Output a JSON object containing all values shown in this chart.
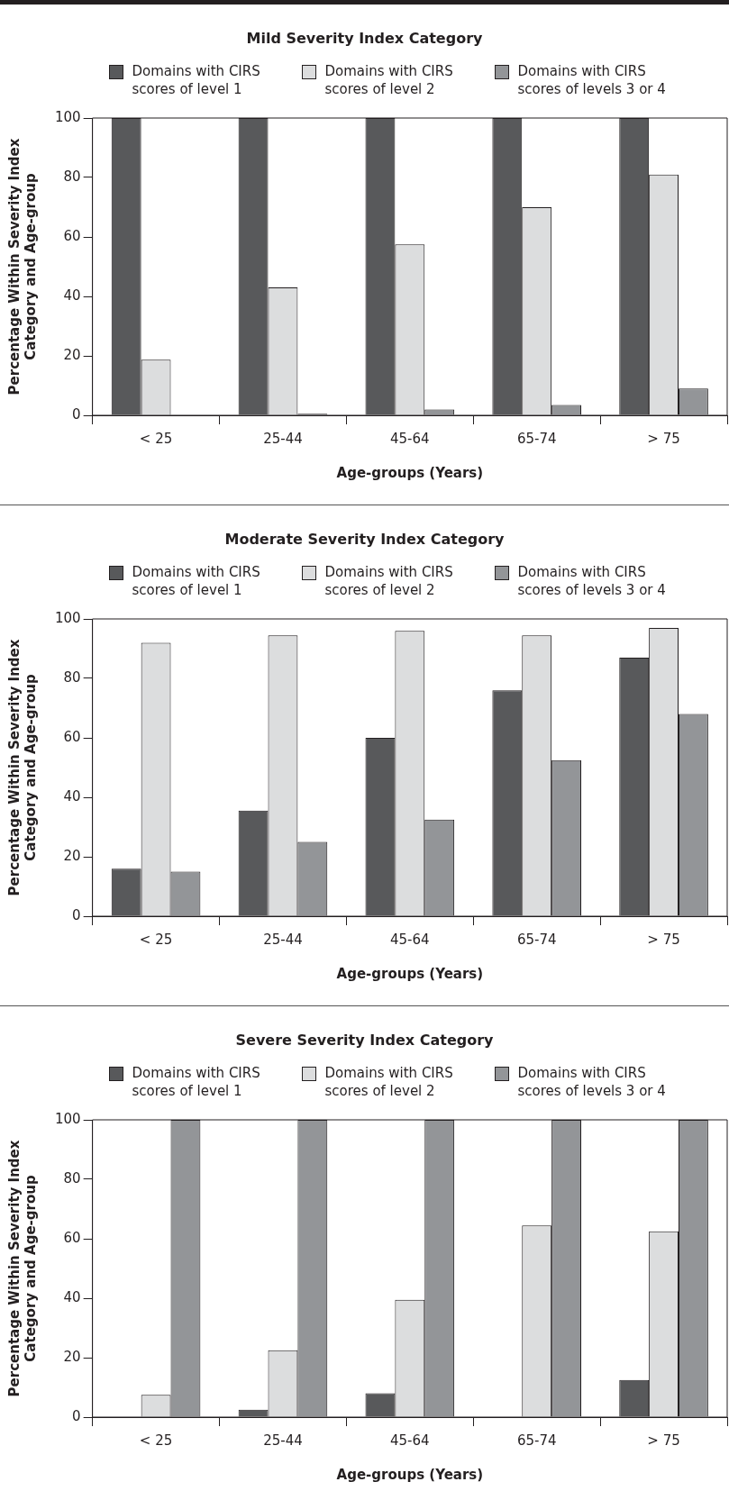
{
  "chart_data": [
    {
      "type": "bar",
      "title": "Mild Severity Index Category",
      "xlabel": "Age-groups (Years)",
      "ylabel": "Percentage Within Severity Index Category and Age-group",
      "categories": [
        "< 25",
        "25-44",
        "45-64",
        "65-74",
        "> 75"
      ],
      "ylim": [
        0,
        100
      ],
      "yticks": [
        0,
        20,
        40,
        60,
        80,
        100
      ],
      "legend": "top",
      "series": [
        {
          "name": "Domains with CIRS scores of level 1",
          "color": "#58595b",
          "values": [
            100,
            100,
            100,
            100,
            100
          ]
        },
        {
          "name": "Domains with CIRS scores of level 2",
          "color": "#dcddde",
          "values": [
            18.7,
            43,
            57.5,
            70,
            81
          ]
        },
        {
          "name": "Domains with CIRS scores of levels 3 or 4",
          "color": "#939598",
          "values": [
            0,
            0.5,
            2,
            3.5,
            9
          ]
        }
      ]
    },
    {
      "type": "bar",
      "title": "Moderate Severity Index Category",
      "xlabel": "Age-groups (Years)",
      "ylabel": "Percentage Within Severity Index Category and Age-group",
      "categories": [
        "< 25",
        "25-44",
        "45-64",
        "65-74",
        "> 75"
      ],
      "ylim": [
        0,
        100
      ],
      "yticks": [
        0,
        20,
        40,
        60,
        80,
        100
      ],
      "legend": "top",
      "series": [
        {
          "name": "Domains with CIRS scores of level 1",
          "color": "#58595b",
          "values": [
            16,
            35.5,
            60,
            76,
            87
          ]
        },
        {
          "name": "Domains with CIRS scores of level 2",
          "color": "#dcddde",
          "values": [
            92,
            94.5,
            96,
            94.5,
            97
          ]
        },
        {
          "name": "Domains with CIRS scores of levels 3 or 4",
          "color": "#939598",
          "values": [
            15,
            25,
            32.5,
            52.5,
            68
          ]
        }
      ]
    },
    {
      "type": "bar",
      "title": "Severe Severity Index Category",
      "xlabel": "Age-groups (Years)",
      "ylabel": "Percentage Within Severity Index Category and Age-group",
      "categories": [
        "< 25",
        "25-44",
        "45-64",
        "65-74",
        "> 75"
      ],
      "ylim": [
        0,
        100
      ],
      "yticks": [
        0,
        20,
        40,
        60,
        80,
        100
      ],
      "legend": "top",
      "series": [
        {
          "name": "Domains with CIRS scores of level 1",
          "color": "#58595b",
          "values": [
            0,
            2.5,
            8,
            0,
            12.5
          ]
        },
        {
          "name": "Domains with CIRS scores of level 2",
          "color": "#dcddde",
          "values": [
            7.5,
            22.5,
            39.5,
            64.5,
            62.5
          ]
        },
        {
          "name": "Domains with CIRS scores of levels 3 or 4",
          "color": "#939598",
          "values": [
            100,
            100,
            100,
            100,
            100
          ]
        }
      ]
    }
  ]
}
